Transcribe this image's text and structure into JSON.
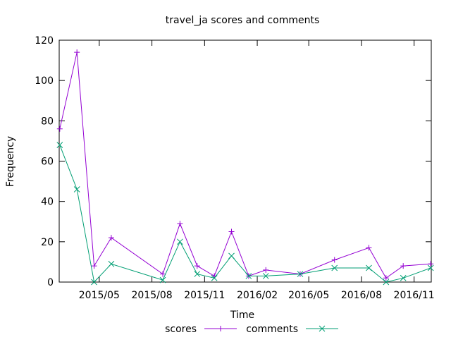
{
  "chart_data": {
    "type": "line",
    "title": "travel_ja scores and comments",
    "xlabel": "Time",
    "ylabel": "Frequency",
    "ylim": [
      0,
      120
    ],
    "yticks": [
      0,
      20,
      40,
      60,
      80,
      100,
      120
    ],
    "xlim": [
      "2015-02-20",
      "2016-12-01"
    ],
    "xticks": [
      {
        "date": "2015-05-01",
        "label": "2015/05"
      },
      {
        "date": "2015-08-01",
        "label": "2015/08"
      },
      {
        "date": "2015-11-01",
        "label": "2015/11"
      },
      {
        "date": "2016-02-01",
        "label": "2016/02"
      },
      {
        "date": "2016-05-01",
        "label": "2016/05"
      },
      {
        "date": "2016-08-01",
        "label": "2016/08"
      },
      {
        "date": "2016-11-01",
        "label": "2016/11"
      }
    ],
    "grid": false,
    "legend_position": "bottom",
    "series": [
      {
        "name": "scores",
        "color": "#9400d3",
        "marker": "plus",
        "points": [
          [
            "2015-02-21",
            76
          ],
          [
            "2015-03-23",
            114
          ],
          [
            "2015-04-22",
            8
          ],
          [
            "2015-05-22",
            22
          ],
          [
            "2015-08-20",
            4
          ],
          [
            "2015-09-19",
            29
          ],
          [
            "2015-10-19",
            8
          ],
          [
            "2015-11-18",
            3
          ],
          [
            "2015-12-18",
            25
          ],
          [
            "2016-01-17",
            3
          ],
          [
            "2016-02-16",
            6
          ],
          [
            "2016-04-16",
            4
          ],
          [
            "2016-06-15",
            11
          ],
          [
            "2016-08-14",
            17
          ],
          [
            "2016-09-13",
            2
          ],
          [
            "2016-10-13",
            8
          ],
          [
            "2016-11-30",
            9
          ]
        ]
      },
      {
        "name": "comments",
        "color": "#009e73",
        "marker": "cross",
        "points": [
          [
            "2015-02-21",
            68
          ],
          [
            "2015-03-23",
            46
          ],
          [
            "2015-04-22",
            0
          ],
          [
            "2015-05-22",
            9
          ],
          [
            "2015-08-20",
            1
          ],
          [
            "2015-09-19",
            20
          ],
          [
            "2015-10-19",
            4
          ],
          [
            "2015-11-18",
            2
          ],
          [
            "2015-12-18",
            13
          ],
          [
            "2016-01-17",
            3
          ],
          [
            "2016-02-16",
            3
          ],
          [
            "2016-04-16",
            4
          ],
          [
            "2016-06-15",
            7
          ],
          [
            "2016-08-14",
            7
          ],
          [
            "2016-09-13",
            0
          ],
          [
            "2016-10-13",
            2
          ],
          [
            "2016-11-30",
            7
          ]
        ]
      }
    ]
  }
}
